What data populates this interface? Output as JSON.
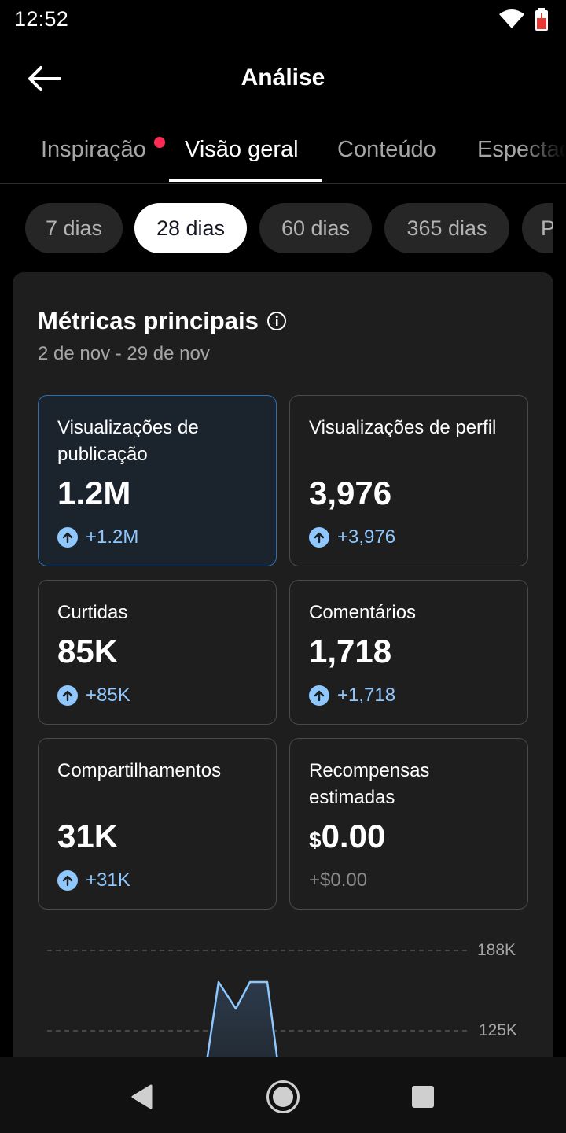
{
  "status": {
    "time": "12:52"
  },
  "header": {
    "title": "Análise"
  },
  "tabs": [
    {
      "label": "Inspiração",
      "has_dot": true
    },
    {
      "label": "Visão geral",
      "active": true
    },
    {
      "label": "Conteúdo"
    },
    {
      "label": "Espectadores"
    }
  ],
  "ranges": [
    {
      "label": "7 dias"
    },
    {
      "label": "28 dias",
      "active": true
    },
    {
      "label": "60 dias"
    },
    {
      "label": "365 dias"
    },
    {
      "label": "P"
    }
  ],
  "metrics_card": {
    "title": "Métricas principais",
    "date_range": "2 de nov - 29 de nov"
  },
  "metrics": [
    {
      "label": "Visualizações de publicação",
      "value": "1.2M",
      "change": "+1.2M"
    },
    {
      "label": "Visualizações de perfil",
      "value": "3,976",
      "change": "+3,976"
    },
    {
      "label": "Curtidas",
      "value": "85K",
      "change": "+85K"
    },
    {
      "label": "Comentários",
      "value": "1,718",
      "change": "+1,718"
    },
    {
      "label": "Compartilhamentos",
      "value": "31K",
      "change": "+31K"
    },
    {
      "label": "Recompensas estimadas",
      "currency": "$",
      "value": "0.00",
      "change": "+$0.00"
    }
  ],
  "chart_data": {
    "type": "area",
    "y_ticks": [
      "188K",
      "125K"
    ],
    "grid": true
  },
  "colors": {
    "accent_blue": "#8ec8ff",
    "selected_border": "#2d6fb0",
    "notification_dot": "#fe2c55"
  }
}
